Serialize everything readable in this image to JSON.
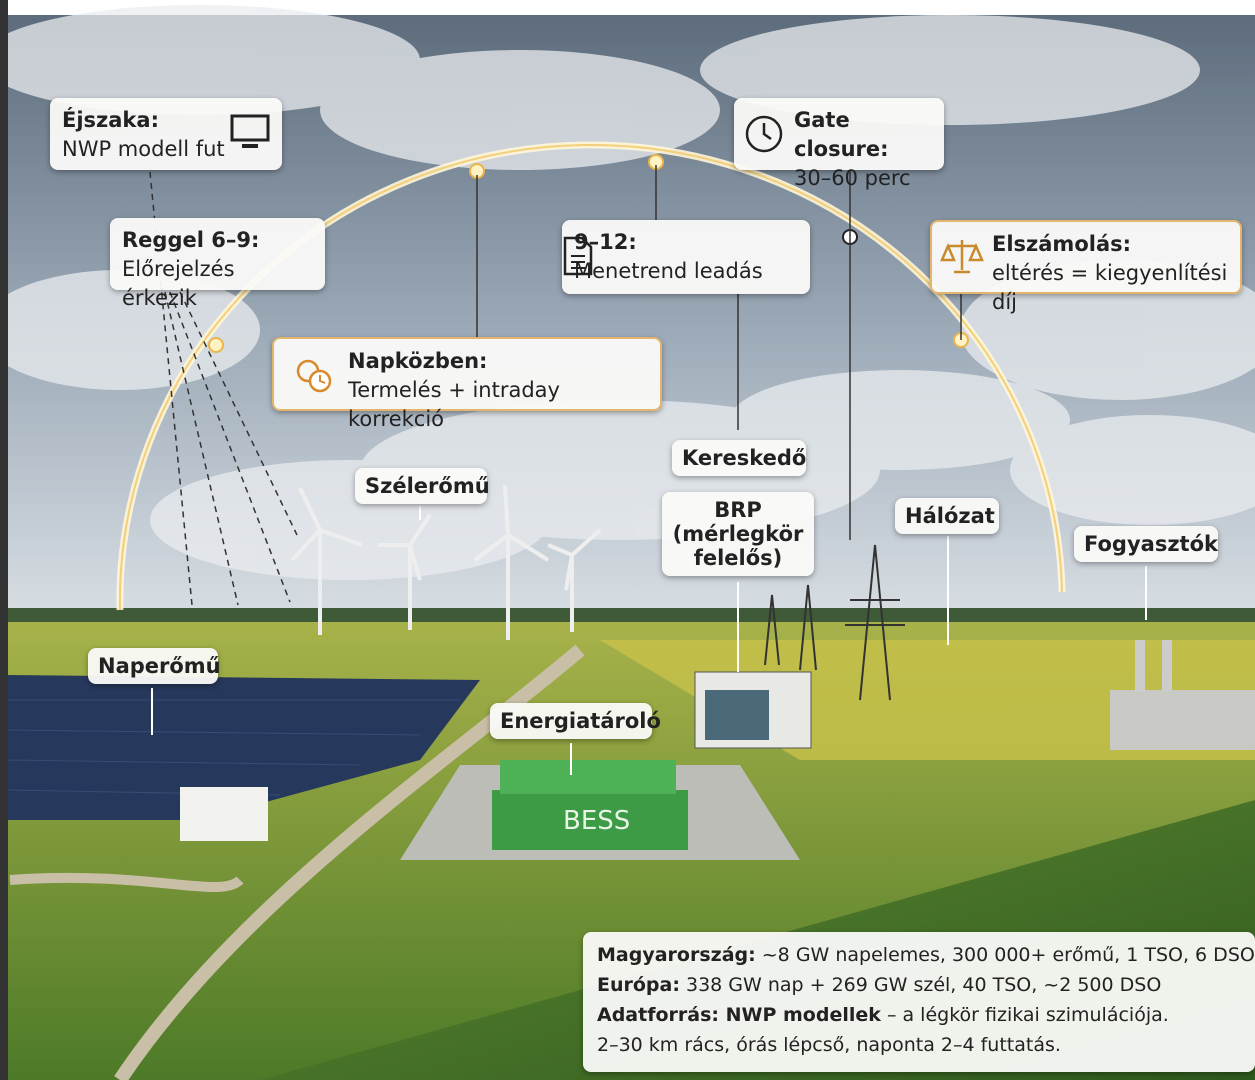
{
  "timeline": [
    {
      "title": "Éjszaka:",
      "text": "NWP modell fut"
    },
    {
      "title": "Reggel 6–9:",
      "text": "Előrejelzés érkezik"
    },
    {
      "title": "Napközben:",
      "text": "Termelés + intraday korrekció"
    },
    {
      "title": "9–12:",
      "text": "Menetrend leadás"
    },
    {
      "title": "Gate closure:",
      "text": "30–60 perc"
    },
    {
      "title": "Elszámolás:",
      "text": "eltérés = kiegyenlítési díj"
    }
  ],
  "labels": {
    "wind": "Szélerőmű",
    "trader": "Kereskedő",
    "brp": [
      "BRP",
      "(mérlegkör",
      "felelős)"
    ],
    "grid": "Hálózat",
    "consumers": "Fogyasztók",
    "solar": "Naperőmű",
    "storage": "Energiatároló",
    "bess": "BESS"
  },
  "info": [
    {
      "bold": "Magyarország:",
      "text": "~8 GW napelemes, 300 000+ erőmű, 1 TSO, 6 DSO"
    },
    {
      "bold": "Európa:",
      "text": "338 GW nap + 269 GW szél, 40 TSO, ~2 500 DSO"
    },
    {
      "bold": "Adatforrás: NWP modellek",
      "text": "– a légkör fizikai szimulációja."
    },
    {
      "text": "2–30 km rács, órás lépcső, naponta 2–4 futtatás."
    }
  ]
}
